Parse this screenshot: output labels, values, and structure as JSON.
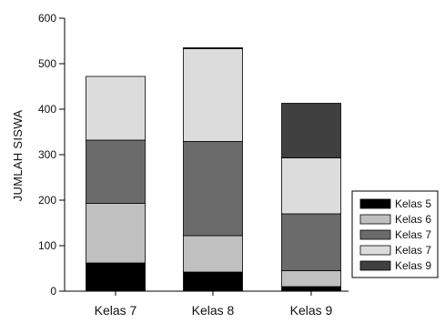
{
  "chart_data": {
    "type": "bar",
    "stacked": true,
    "categories": [
      "Kelas 7",
      "Kelas 8",
      "Kelas 9"
    ],
    "ylabel": "JUMLAH SISWA",
    "xlabel": "",
    "ylim": [
      0,
      600
    ],
    "yticks": [
      "0",
      "100",
      "200",
      "300",
      "400",
      "500",
      "600"
    ],
    "grid": false,
    "legend_position": "bottom-right",
    "series": [
      {
        "name": "Kelas 5",
        "color": "#000000",
        "values": [
          62,
          42,
          10
        ]
      },
      {
        "name": "Kelas 6",
        "color": "#c0c0c0",
        "values": [
          131,
          80,
          35
        ]
      },
      {
        "name": "Kelas 7",
        "color": "#6b6b6b",
        "values": [
          139,
          207,
          125
        ]
      },
      {
        "name": "Kelas 7",
        "color": "#dcdcdc",
        "values": [
          140,
          204,
          123
        ]
      },
      {
        "name": "Kelas 9",
        "color": "#404040",
        "values": [
          0,
          2,
          120
        ]
      }
    ]
  }
}
